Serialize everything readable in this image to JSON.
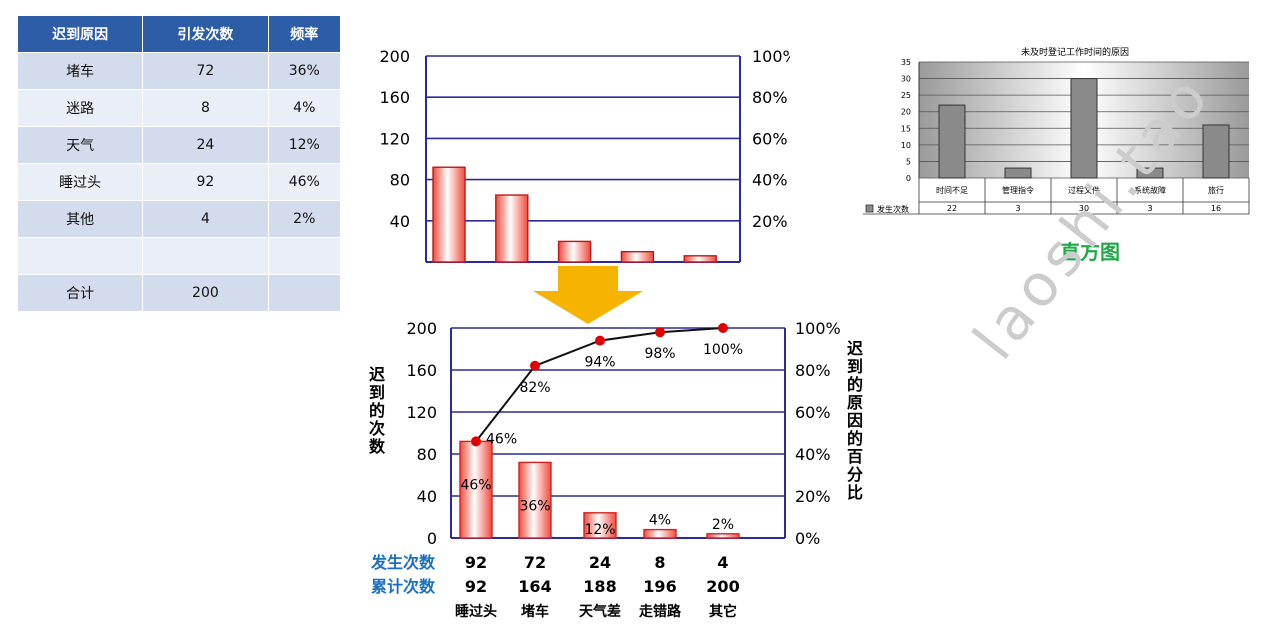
{
  "table": {
    "headers": [
      "迟到原因",
      "引发次数",
      "频率"
    ],
    "rows": [
      [
        "堵车",
        "72",
        "36%"
      ],
      [
        "迷路",
        "8",
        "4%"
      ],
      [
        "天气",
        "24",
        "12%"
      ],
      [
        "睡过头",
        "92",
        "46%"
      ],
      [
        "其他",
        "4",
        "2%"
      ],
      [
        "",
        "",
        ""
      ]
    ],
    "total": [
      "合计",
      "200",
      ""
    ]
  },
  "chart_data": [
    {
      "type": "bar",
      "values": [
        92,
        65,
        20,
        10,
        6
      ],
      "ylim": [
        0,
        200
      ],
      "y_ticks": [
        "200",
        "160",
        "120",
        "80",
        "40"
      ],
      "y2_ticks": [
        "100%",
        "80%",
        "60%",
        "40%",
        "20%"
      ],
      "grid": true
    },
    {
      "type": "pareto",
      "categories": [
        "睡过头",
        "堵车",
        "天气差",
        "走错路",
        "其它"
      ],
      "values": [
        92,
        72,
        24,
        8,
        4
      ],
      "cumulative": [
        92,
        164,
        188,
        196,
        200
      ],
      "bar_labels": [
        "46%",
        "36%",
        "12%",
        "4%",
        "2%"
      ],
      "cumulative_labels": [
        "46%",
        "82%",
        "94%",
        "98%",
        "100%"
      ],
      "ylabel": "迟到的次数",
      "y2label": "迟到的原因的百分比",
      "ylim": [
        0,
        200
      ],
      "y_ticks": [
        "200",
        "160",
        "120",
        "80",
        "40",
        "0"
      ],
      "y2_ticks": [
        "100%",
        "80%",
        "60%",
        "40%",
        "20%",
        "0%"
      ],
      "row1_label": "发生次数",
      "row2_label": "累计次数",
      "grid": true,
      "colors": {
        "bar_edge": "#d32222",
        "line": "#111111",
        "marker": "#e00000",
        "axis": "#2a2a9a",
        "row_label": "#1a6fc0"
      }
    },
    {
      "type": "bar",
      "title": "未及时登记工作时间的原因",
      "categories": [
        "时间不足",
        "管理指令",
        "过程文件",
        "系统故障",
        "旅行"
      ],
      "values": [
        22,
        3,
        30,
        3,
        16
      ],
      "value_labels": [
        "22",
        "3",
        "30",
        "3",
        "16"
      ],
      "legend": "发生次数",
      "ylim": [
        0,
        35
      ],
      "y_ticks": [
        "35",
        "30",
        "25",
        "20",
        "15",
        "10",
        "5",
        "0"
      ],
      "grid": true
    }
  ],
  "histogram_caption": "直方图",
  "watermark": "laoshi.tao"
}
